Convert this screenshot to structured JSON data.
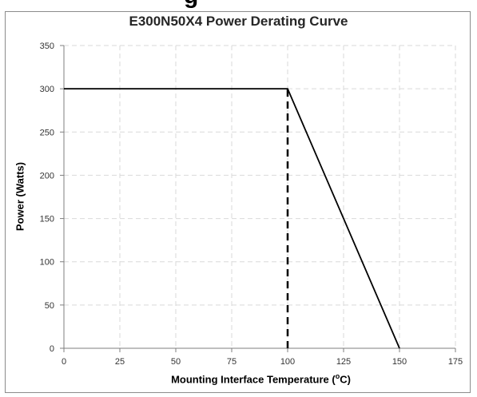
{
  "page": {
    "cropped_heading": "g"
  },
  "chart_data": {
    "type": "line",
    "title": "E300N50X4 Power Derating Curve",
    "xlabel_prefix": "Mounting Interface Temperature (",
    "xlabel_degree": "o",
    "xlabel_suffix": "C)",
    "ylabel": "Power (Watts)",
    "xlim": [
      0,
      175
    ],
    "ylim": [
      0,
      350
    ],
    "xticks": [
      0,
      25,
      50,
      75,
      100,
      125,
      150,
      175
    ],
    "yticks": [
      0,
      50,
      100,
      150,
      200,
      250,
      300,
      350
    ],
    "grid": true,
    "series": [
      {
        "x": [
          0,
          100,
          150
        ],
        "y": [
          300,
          300,
          0
        ],
        "color": "#000000",
        "style": "solid"
      }
    ],
    "reference_lines": [
      {
        "x": [
          100,
          100
        ],
        "y": [
          0,
          300
        ],
        "color": "#000000",
        "style": "dashed"
      }
    ]
  }
}
